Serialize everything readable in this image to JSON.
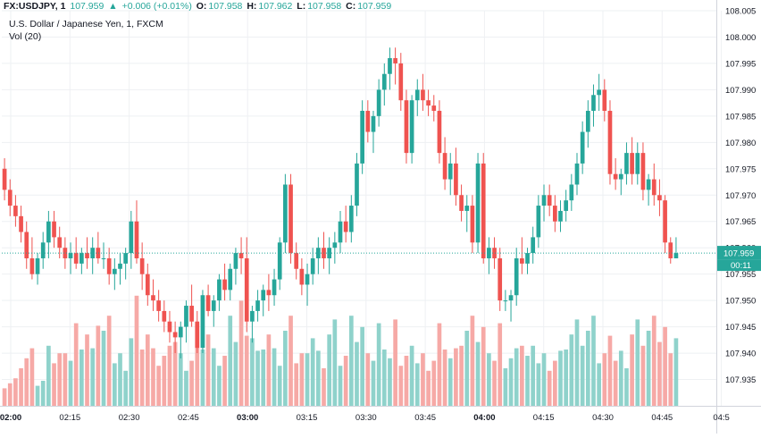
{
  "header": {
    "symbol": "FX:USDJPY, 1",
    "last": "107.959",
    "arrow": "▲",
    "change": "+0.006 (+0.01%)",
    "o_label": "O:",
    "o_value": "107.958",
    "h_label": "H:",
    "h_value": "107.962",
    "l_label": "L:",
    "l_value": "107.958",
    "c_label": "C:",
    "c_value": "107.959"
  },
  "legend": {
    "title": "U.S. Dollar / Japanese Yen, 1, FXCM",
    "volume": "Vol (20)"
  },
  "price_label": {
    "value": "107.959",
    "countdown": "00:11"
  },
  "colors": {
    "up": "#26a69a",
    "down": "#ef5350",
    "up_vol": "#8fd2cb",
    "down_vol": "#f6a9a6",
    "grid": "#eef0f3",
    "axis": "#d1d4dc"
  },
  "chart_data": {
    "type": "candlestick",
    "ylim": [
      107.93,
      108.005
    ],
    "yticks": [
      "107.935",
      "107.940",
      "107.945",
      "107.950",
      "107.955",
      "107.960",
      "107.965",
      "107.970",
      "107.975",
      "107.980",
      "107.985",
      "107.990",
      "107.995",
      "108.000",
      "108.005"
    ],
    "xticks": [
      "02:00",
      "02:15",
      "02:30",
      "02:45",
      "03:00",
      "03:15",
      "03:30",
      "03:45",
      "04:00",
      "04:15",
      "04:30",
      "04:45",
      "04:5"
    ],
    "last_price": 107.959,
    "candles": [
      [
        107.975,
        107.977,
        107.969,
        107.971,
        1
      ],
      [
        107.971,
        107.973,
        107.966,
        107.968,
        1
      ],
      [
        107.968,
        107.97,
        107.964,
        107.966,
        1
      ],
      [
        107.966,
        107.968,
        107.961,
        107.963,
        2
      ],
      [
        107.963,
        107.965,
        107.956,
        107.958,
        2
      ],
      [
        107.958,
        107.962,
        107.954,
        107.955,
        2
      ],
      [
        107.955,
        107.959,
        107.953,
        107.958,
        1
      ],
      [
        107.958,
        107.963,
        107.956,
        107.961,
        1
      ],
      [
        107.961,
        107.967,
        107.958,
        107.965,
        2
      ],
      [
        107.965,
        107.967,
        107.96,
        107.962,
        2
      ],
      [
        107.962,
        107.964,
        107.958,
        107.96,
        2
      ],
      [
        107.96,
        107.962,
        107.956,
        107.958,
        3
      ],
      [
        107.958,
        107.961,
        107.955,
        107.959,
        2
      ],
      [
        107.959,
        107.962,
        107.956,
        107.957,
        3
      ],
      [
        107.957,
        107.96,
        107.955,
        107.959,
        3
      ],
      [
        107.959,
        107.962,
        107.956,
        107.958,
        3
      ],
      [
        107.958,
        107.962,
        107.955,
        107.96,
        2
      ],
      [
        107.96,
        107.963,
        107.957,
        107.958,
        4
      ],
      [
        107.958,
        107.961,
        107.956,
        107.958,
        3
      ],
      [
        107.958,
        107.96,
        107.953,
        107.955,
        3
      ],
      [
        107.955,
        107.958,
        107.952,
        107.956,
        2
      ],
      [
        107.956,
        107.959,
        107.953,
        107.957,
        2
      ],
      [
        107.957,
        107.96,
        107.954,
        107.959,
        2
      ],
      [
        107.959,
        107.967,
        107.956,
        107.965,
        3
      ],
      [
        107.965,
        107.969,
        107.957,
        107.958,
        4
      ],
      [
        107.958,
        107.961,
        107.952,
        107.955,
        3
      ],
      [
        107.955,
        107.957,
        107.949,
        107.951,
        3
      ],
      [
        107.951,
        107.954,
        107.948,
        107.95,
        2
      ],
      [
        107.95,
        107.952,
        107.946,
        107.948,
        2
      ],
      [
        107.948,
        107.95,
        107.944,
        107.946,
        2
      ],
      [
        107.946,
        107.948,
        107.942,
        107.944,
        2
      ],
      [
        107.944,
        107.946,
        107.94,
        107.943,
        3
      ],
      [
        107.943,
        107.946,
        107.939,
        107.945,
        2
      ],
      [
        107.945,
        107.95,
        107.942,
        107.949,
        2
      ],
      [
        107.949,
        107.953,
        107.945,
        107.946,
        2
      ],
      [
        107.946,
        107.948,
        107.94,
        107.941,
        3
      ],
      [
        107.941,
        107.952,
        107.94,
        107.951,
        3
      ],
      [
        107.951,
        107.953,
        107.947,
        107.948,
        3
      ],
      [
        107.948,
        107.951,
        107.945,
        107.95,
        2
      ],
      [
        107.95,
        107.955,
        107.948,
        107.954,
        2
      ],
      [
        107.954,
        107.957,
        107.95,
        107.952,
        2
      ],
      [
        107.952,
        107.957,
        107.95,
        107.956,
        3
      ],
      [
        107.956,
        107.96,
        107.953,
        107.959,
        3
      ],
      [
        107.959,
        107.962,
        107.955,
        107.958,
        4
      ],
      [
        107.958,
        107.962,
        107.944,
        107.946,
        4
      ],
      [
        107.946,
        107.949,
        107.942,
        107.948,
        3
      ],
      [
        107.948,
        107.952,
        107.946,
        107.95,
        2
      ],
      [
        107.95,
        107.953,
        107.947,
        107.952,
        3
      ],
      [
        107.952,
        107.955,
        107.948,
        107.951,
        3
      ],
      [
        107.951,
        107.956,
        107.949,
        107.954,
        2
      ],
      [
        107.954,
        107.962,
        107.952,
        107.961,
        2
      ],
      [
        107.961,
        107.974,
        107.959,
        107.972,
        3
      ],
      [
        107.972,
        107.974,
        107.957,
        107.959,
        3
      ],
      [
        107.959,
        107.961,
        107.954,
        107.956,
        2
      ],
      [
        107.956,
        107.958,
        107.951,
        107.953,
        2
      ],
      [
        107.953,
        107.957,
        107.949,
        107.955,
        3
      ],
      [
        107.955,
        107.96,
        107.953,
        107.958,
        3
      ],
      [
        107.958,
        107.962,
        107.955,
        107.96,
        2
      ],
      [
        107.96,
        107.963,
        107.956,
        107.958,
        2
      ],
      [
        107.958,
        107.962,
        107.955,
        107.96,
        3
      ],
      [
        107.96,
        107.963,
        107.957,
        107.961,
        3
      ],
      [
        107.961,
        107.967,
        107.959,
        107.965,
        2
      ],
      [
        107.965,
        107.968,
        107.961,
        107.963,
        2
      ],
      [
        107.963,
        107.97,
        107.961,
        107.968,
        3
      ],
      [
        107.968,
        107.978,
        107.966,
        107.976,
        3
      ],
      [
        107.976,
        107.988,
        107.974,
        107.986,
        3
      ],
      [
        107.986,
        107.988,
        107.98,
        107.982,
        3
      ],
      [
        107.982,
        107.986,
        107.978,
        107.985,
        2
      ],
      [
        107.985,
        107.992,
        107.983,
        107.99,
        3
      ],
      [
        107.99,
        107.995,
        107.987,
        107.993,
        3
      ],
      [
        107.993,
        107.998,
        107.99,
        107.996,
        2
      ],
      [
        107.996,
        107.998,
        107.991,
        107.995,
        3
      ],
      [
        107.995,
        107.997,
        107.986,
        107.988,
        2
      ],
      [
        107.988,
        107.99,
        107.976,
        107.978,
        2
      ],
      [
        107.978,
        107.989,
        107.976,
        107.988,
        2
      ],
      [
        107.988,
        107.992,
        107.985,
        107.99,
        2
      ],
      [
        107.99,
        107.993,
        107.986,
        107.988,
        2
      ],
      [
        107.988,
        107.99,
        107.985,
        107.987,
        2
      ],
      [
        107.987,
        107.989,
        107.984,
        107.986,
        2
      ],
      [
        107.986,
        107.988,
        107.976,
        107.978,
        3
      ],
      [
        107.978,
        107.981,
        107.971,
        107.973,
        3
      ],
      [
        107.973,
        107.978,
        107.97,
        107.976,
        2
      ],
      [
        107.976,
        107.979,
        107.968,
        107.97,
        2
      ],
      [
        107.97,
        107.972,
        107.965,
        107.967,
        3
      ],
      [
        107.967,
        107.97,
        107.963,
        107.968,
        3
      ],
      [
        107.968,
        107.97,
        107.959,
        107.961,
        3
      ],
      [
        107.961,
        107.978,
        107.959,
        107.976,
        3
      ],
      [
        107.976,
        107.978,
        107.957,
        107.958,
        3
      ],
      [
        107.958,
        107.962,
        107.955,
        107.96,
        3
      ],
      [
        107.96,
        107.962,
        107.956,
        107.958,
        2
      ],
      [
        107.958,
        107.96,
        107.948,
        107.95,
        3
      ],
      [
        107.95,
        107.952,
        107.948,
        107.95,
        2
      ],
      [
        107.95,
        107.952,
        107.946,
        107.951,
        2
      ],
      [
        107.951,
        107.96,
        107.949,
        107.958,
        2
      ],
      [
        107.958,
        107.962,
        107.955,
        107.957,
        3
      ],
      [
        107.957,
        107.96,
        107.955,
        107.959,
        2
      ],
      [
        107.959,
        107.964,
        107.957,
        107.962,
        2
      ],
      [
        107.962,
        107.97,
        107.96,
        107.968,
        2
      ],
      [
        107.968,
        107.972,
        107.965,
        107.97,
        2
      ],
      [
        107.97,
        107.972,
        107.966,
        107.968,
        2
      ],
      [
        107.968,
        107.97,
        107.963,
        107.965,
        2
      ],
      [
        107.965,
        107.969,
        107.963,
        107.967,
        2
      ],
      [
        107.967,
        107.971,
        107.965,
        107.969,
        3
      ],
      [
        107.969,
        107.974,
        107.967,
        107.972,
        3
      ],
      [
        107.972,
        107.978,
        107.97,
        107.976,
        3
      ],
      [
        107.976,
        107.984,
        107.974,
        107.982,
        3
      ],
      [
        107.982,
        107.988,
        107.979,
        107.986,
        3
      ],
      [
        107.986,
        107.991,
        107.983,
        107.989,
        3
      ],
      [
        107.989,
        107.993,
        107.986,
        107.99,
        2
      ],
      [
        107.99,
        107.992,
        107.984,
        107.986,
        2
      ],
      [
        107.986,
        107.988,
        107.972,
        107.974,
        4
      ],
      [
        107.974,
        107.977,
        107.971,
        107.973,
        2
      ],
      [
        107.973,
        107.975,
        107.97,
        107.974,
        2
      ],
      [
        107.974,
        107.98,
        107.972,
        107.978,
        2
      ],
      [
        107.978,
        107.981,
        107.972,
        107.974,
        3
      ],
      [
        107.974,
        107.98,
        107.972,
        107.978,
        3
      ],
      [
        107.978,
        107.98,
        107.969,
        107.971,
        3
      ],
      [
        107.971,
        107.974,
        107.968,
        107.973,
        3
      ],
      [
        107.973,
        107.976,
        107.968,
        107.97,
        3
      ],
      [
        107.97,
        107.973,
        107.966,
        107.969,
        3
      ],
      [
        107.969,
        107.97,
        107.959,
        107.961,
        3
      ],
      [
        107.961,
        107.962,
        107.957,
        107.958,
        3
      ],
      [
        107.958,
        107.962,
        107.958,
        107.959,
        3
      ]
    ]
  }
}
